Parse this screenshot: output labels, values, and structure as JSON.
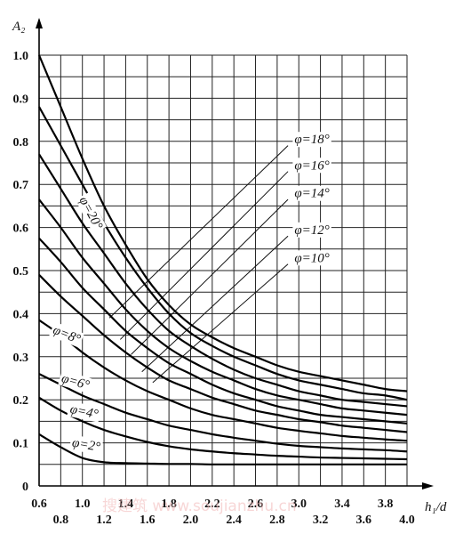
{
  "chart_data": {
    "type": "line",
    "title": "",
    "xlabel": "h₁/d",
    "ylabel": "A₂",
    "xlim": [
      0.6,
      4.0
    ],
    "ylim": [
      0,
      1.0
    ],
    "grid": true,
    "x_ticks_top": [
      "0.6",
      "1.0",
      "1.4",
      "1.8",
      "2.2",
      "2.6",
      "3.0",
      "3.4",
      "3.8"
    ],
    "x_ticks_bottom": [
      "0.8",
      "1.2",
      "1.6",
      "2.0",
      "2.4",
      "2.8",
      "3.2",
      "3.6",
      "4.0"
    ],
    "y_ticks": [
      "0",
      "0.1",
      "0.2",
      "0.3",
      "0.4",
      "0.5",
      "0.6",
      "0.7",
      "0.8",
      "0.9",
      "1.0"
    ],
    "x": [
      0.6,
      0.8,
      1.0,
      1.2,
      1.4,
      1.6,
      1.8,
      2.0,
      2.2,
      2.4,
      2.6,
      2.8,
      3.0,
      3.2,
      3.4,
      3.6,
      3.8,
      4.0
    ],
    "series": [
      {
        "name": "φ=20°",
        "values": [
          1.0,
          0.88,
          0.76,
          0.65,
          0.56,
          0.48,
          0.42,
          0.375,
          0.345,
          0.32,
          0.3,
          0.28,
          0.265,
          0.255,
          0.245,
          0.235,
          0.225,
          0.22
        ]
      },
      {
        "name": "φ=18°",
        "values": [
          0.88,
          0.79,
          0.7,
          0.61,
          0.53,
          0.46,
          0.4,
          0.355,
          0.325,
          0.3,
          0.28,
          0.26,
          0.245,
          0.235,
          0.225,
          0.215,
          0.21,
          0.2
        ]
      },
      {
        "name": "φ=16°",
        "values": [
          0.77,
          0.69,
          0.61,
          0.54,
          0.47,
          0.41,
          0.36,
          0.325,
          0.295,
          0.27,
          0.25,
          0.235,
          0.22,
          0.21,
          0.2,
          0.195,
          0.19,
          0.185
        ]
      },
      {
        "name": "φ=14°",
        "values": [
          0.665,
          0.6,
          0.53,
          0.47,
          0.41,
          0.36,
          0.32,
          0.29,
          0.265,
          0.245,
          0.225,
          0.21,
          0.2,
          0.19,
          0.18,
          0.175,
          0.17,
          0.165
        ]
      },
      {
        "name": "φ=12°",
        "values": [
          0.575,
          0.52,
          0.46,
          0.41,
          0.36,
          0.32,
          0.285,
          0.26,
          0.235,
          0.215,
          0.2,
          0.185,
          0.175,
          0.165,
          0.16,
          0.155,
          0.15,
          0.145
        ]
      },
      {
        "name": "φ=10°",
        "values": [
          0.49,
          0.44,
          0.395,
          0.35,
          0.31,
          0.275,
          0.245,
          0.225,
          0.205,
          0.19,
          0.175,
          0.165,
          0.155,
          0.148,
          0.14,
          0.135,
          0.13,
          0.125
        ]
      },
      {
        "name": "φ=8°",
        "values": [
          0.385,
          0.35,
          0.31,
          0.275,
          0.245,
          0.22,
          0.2,
          0.18,
          0.165,
          0.155,
          0.145,
          0.135,
          0.128,
          0.122,
          0.116,
          0.112,
          0.108,
          0.105
        ]
      },
      {
        "name": "φ=6°",
        "values": [
          0.26,
          0.235,
          0.21,
          0.19,
          0.17,
          0.155,
          0.14,
          0.13,
          0.12,
          0.112,
          0.105,
          0.098,
          0.093,
          0.09,
          0.087,
          0.085,
          0.083,
          0.08
        ]
      },
      {
        "name": "φ=4°",
        "values": [
          0.205,
          0.175,
          0.15,
          0.13,
          0.115,
          0.102,
          0.092,
          0.085,
          0.08,
          0.076,
          0.073,
          0.07,
          0.068,
          0.066,
          0.065,
          0.064,
          0.063,
          0.062
        ]
      },
      {
        "name": "φ=2°",
        "values": [
          0.12,
          0.09,
          0.065,
          0.055,
          0.053,
          0.052,
          0.051,
          0.051,
          0.05,
          0.05,
          0.05,
          0.05,
          0.05,
          0.05,
          0.05,
          0.05,
          0.05,
          0.05
        ]
      }
    ],
    "curve_labels": [
      {
        "text": "φ=20°",
        "x": 0.97,
        "y": 0.665,
        "rotate": 62
      },
      {
        "text": "φ=8°",
        "x": 0.72,
        "y": 0.355,
        "rotate": 22
      },
      {
        "text": "φ=6°",
        "x": 0.8,
        "y": 0.242,
        "rotate": 16
      },
      {
        "text": "φ=4°",
        "x": 0.88,
        "y": 0.17,
        "rotate": 12
      },
      {
        "text": "φ=2°",
        "x": 0.9,
        "y": 0.092,
        "rotate": 10
      },
      {
        "text": "φ=18°",
        "x": 2.96,
        "y": 0.795,
        "rotate": 0
      },
      {
        "text": "φ=16°",
        "x": 2.96,
        "y": 0.735,
        "rotate": 0
      },
      {
        "text": "φ=14°",
        "x": 2.96,
        "y": 0.67,
        "rotate": 0
      },
      {
        "text": "φ=12°",
        "x": 2.96,
        "y": 0.585,
        "rotate": 0
      },
      {
        "text": "φ=10°",
        "x": 2.96,
        "y": 0.52,
        "rotate": 0
      }
    ],
    "leaders": [
      {
        "from": [
          2.9,
          0.79
        ],
        "to": [
          1.25,
          0.39
        ]
      },
      {
        "from": [
          2.9,
          0.73
        ],
        "to": [
          1.35,
          0.34
        ]
      },
      {
        "from": [
          2.9,
          0.665
        ],
        "to": [
          1.45,
          0.305
        ]
      },
      {
        "from": [
          2.9,
          0.58
        ],
        "to": [
          1.55,
          0.265
        ]
      },
      {
        "from": [
          2.9,
          0.515
        ],
        "to": [
          1.65,
          0.24
        ]
      }
    ],
    "watermark": "搜建筑 www.soujianzhu.cn"
  }
}
